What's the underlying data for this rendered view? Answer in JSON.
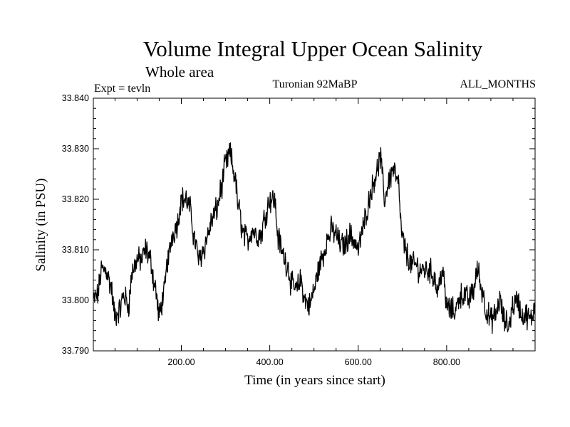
{
  "chart_data": {
    "type": "line",
    "title": "Volume Integral Upper Ocean Salinity",
    "subtitle": "Whole area",
    "expt_label": "Expt = tevln",
    "center_label": "Turonian  92MaBP",
    "right_label": "ALL_MONTHS",
    "xlabel": "Time (in years since start)",
    "ylabel": "Salinity (in PSU)",
    "xlim": [
      1,
      1000
    ],
    "ylim": [
      33.79,
      33.84
    ],
    "xticks": [
      200,
      400,
      600,
      800
    ],
    "xtick_labels": [
      "200.00",
      "400.00",
      "600.00",
      "800.00"
    ],
    "yticks": [
      33.79,
      33.8,
      33.81,
      33.82,
      33.83,
      33.84
    ],
    "ytick_labels": [
      "33.790",
      "33.800",
      "33.810",
      "33.820",
      "33.830",
      "33.840"
    ],
    "series": [
      {
        "name": "salinity",
        "x": [
          1,
          10,
          20,
          30,
          40,
          50,
          60,
          70,
          80,
          90,
          100,
          110,
          120,
          130,
          140,
          150,
          160,
          170,
          180,
          190,
          200,
          210,
          220,
          230,
          240,
          250,
          260,
          270,
          280,
          290,
          300,
          310,
          320,
          330,
          340,
          350,
          360,
          370,
          380,
          390,
          400,
          410,
          420,
          430,
          440,
          450,
          460,
          470,
          480,
          490,
          500,
          510,
          520,
          530,
          540,
          550,
          560,
          570,
          580,
          590,
          600,
          610,
          620,
          630,
          640,
          650,
          660,
          670,
          680,
          690,
          700,
          710,
          720,
          730,
          740,
          750,
          760,
          770,
          780,
          790,
          800,
          810,
          820,
          830,
          840,
          850,
          860,
          870,
          880,
          890,
          900,
          910,
          920,
          930,
          940,
          950,
          960,
          970,
          980,
          990,
          1000
        ],
        "y": [
          33.8,
          33.801,
          33.806,
          33.806,
          33.803,
          33.797,
          33.798,
          33.801,
          33.799,
          33.806,
          33.808,
          33.808,
          33.81,
          33.808,
          33.803,
          33.797,
          33.801,
          33.808,
          33.813,
          33.815,
          33.82,
          33.82,
          33.818,
          33.812,
          33.808,
          33.81,
          33.813,
          33.816,
          33.818,
          33.822,
          33.827,
          33.829,
          33.825,
          33.818,
          33.813,
          33.812,
          33.814,
          33.813,
          33.813,
          33.817,
          33.82,
          33.82,
          33.812,
          33.809,
          33.807,
          33.803,
          33.802,
          33.804,
          33.8,
          33.799,
          33.802,
          33.806,
          33.809,
          33.812,
          33.814,
          33.813,
          33.811,
          33.811,
          33.813,
          33.812,
          33.81,
          33.814,
          33.818,
          33.822,
          33.825,
          33.828,
          33.82,
          33.824,
          33.826,
          33.823,
          33.812,
          33.809,
          33.807,
          33.807,
          33.806,
          33.806,
          33.806,
          33.805,
          33.802,
          33.806,
          33.799,
          33.798,
          33.798,
          33.801,
          33.801,
          33.8,
          33.802,
          33.806,
          33.802,
          33.798,
          33.796,
          33.797,
          33.8,
          33.796,
          33.795,
          33.799,
          33.8,
          33.797,
          33.797,
          33.796,
          33.799
        ]
      }
    ]
  }
}
